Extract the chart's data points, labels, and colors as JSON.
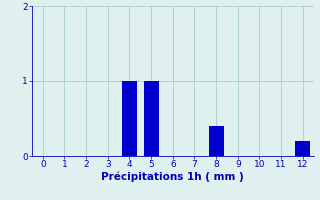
{
  "categories": [
    0,
    1,
    2,
    3,
    4,
    5,
    6,
    7,
    8,
    9,
    10,
    11,
    12
  ],
  "values": [
    0,
    0,
    0,
    0,
    1.0,
    1.0,
    0,
    0,
    0.4,
    0,
    0,
    0,
    0.2
  ],
  "bar_color": "#0000cc",
  "xlabel": "Précipitations 1h ( mm )",
  "ylim": [
    0,
    2
  ],
  "yticks": [
    0,
    1,
    2
  ],
  "xlim": [
    -0.5,
    12.5
  ],
  "xticks": [
    0,
    1,
    2,
    3,
    4,
    5,
    6,
    7,
    8,
    9,
    10,
    11,
    12
  ],
  "background_color": "#dff0ee",
  "grid_color": "#aacccc",
  "tick_color": "#0000bb",
  "label_color": "#0000bb",
  "xlabel_fontsize": 7.5,
  "tick_fontsize": 6.5,
  "bar_width": 0.7
}
